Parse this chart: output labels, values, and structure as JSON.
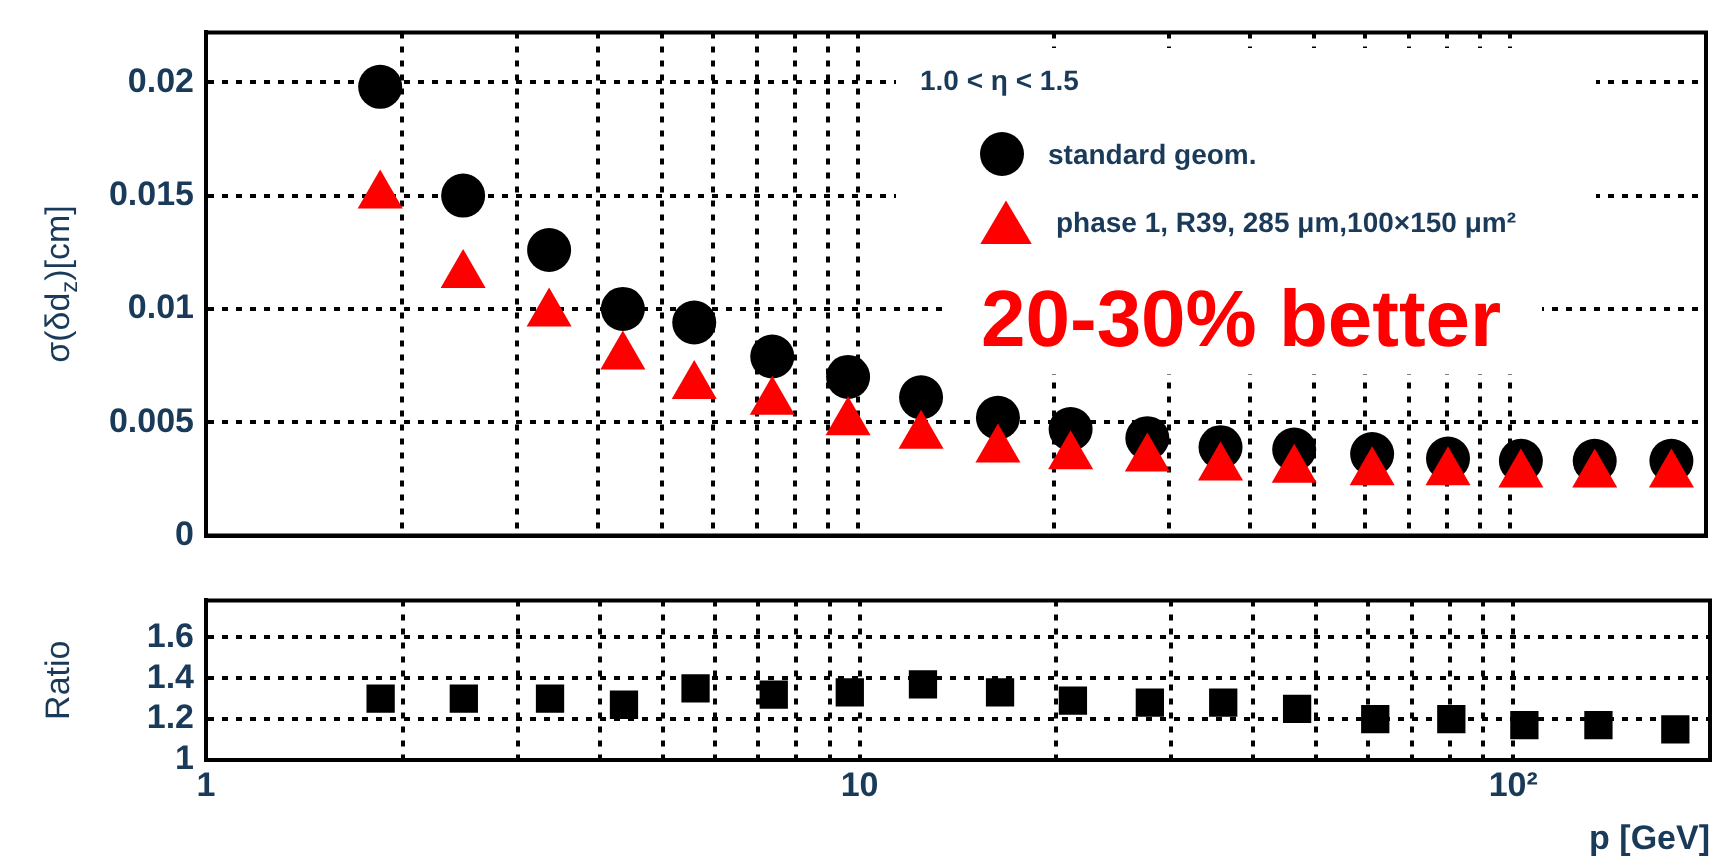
{
  "chart_data": [
    {
      "type": "scatter",
      "ylabel": "σ(δd$_{z}$)[cm]",
      "legend_title": "1.0 < η < 1.5",
      "legend": "top right",
      "log": "x",
      "grid": true,
      "tick_labels": "y",
      "annotations": [
        "20-30% better"
      ],
      "x": [
        1.85,
        2.48,
        3.36,
        4.36,
        5.61,
        7.39,
        9.66,
        12.5,
        16.4,
        21.2,
        27.8,
        36.0,
        46.7,
        61.5,
        80.4,
        104,
        135,
        177
      ],
      "xlim": [
        1,
        200
      ],
      "xticks": [
        {
          "value": 2,
          "label": null
        },
        {
          "value": 3,
          "label": null
        },
        {
          "value": 4,
          "label": null
        },
        {
          "value": 5,
          "label": null
        },
        {
          "value": 6,
          "label": null
        },
        {
          "value": 7,
          "label": null
        },
        {
          "value": 8,
          "label": null
        },
        {
          "value": 9,
          "label": null
        },
        {
          "value": 10,
          "label": null
        },
        {
          "value": 20,
          "label": null
        },
        {
          "value": 30,
          "label": null
        },
        {
          "value": 40,
          "label": null
        },
        {
          "value": 50,
          "label": null
        },
        {
          "value": 60,
          "label": null
        },
        {
          "value": 70,
          "label": null
        },
        {
          "value": 80,
          "label": null
        },
        {
          "value": 90,
          "label": null
        },
        {
          "value": 100,
          "label": null
        }
      ],
      "ylim": [
        0,
        0.0222
      ],
      "yticks": [
        0,
        0.005,
        0.01,
        0.015,
        0.02
      ],
      "series": [
        {
          "name": "standard geom.",
          "color": "#000000",
          "marker": "circle",
          "values": [
            0.0198,
            0.015,
            0.0126,
            0.01,
            0.0094,
            0.0079,
            0.007,
            0.0061,
            0.0052,
            0.0047,
            0.0043,
            0.0039,
            0.0038,
            0.0036,
            0.0034,
            0.0033,
            0.0033,
            0.0033
          ]
        },
        {
          "name": "phase 1, R39, 285 μm,100×150 μm²",
          "color": "#ff0000",
          "marker": "triangle",
          "values": [
            0.015,
            0.0115,
            0.0098,
            0.0079,
            0.0066,
            0.0059,
            0.005,
            0.0044,
            0.0038,
            0.0035,
            0.0034,
            0.003,
            0.0029,
            0.0028,
            0.0028,
            0.0027,
            0.0027,
            0.0027
          ]
        }
      ]
    },
    {
      "type": "scatter",
      "ylabel": "Ratio",
      "xlabel": "p [GeV]",
      "log": "x",
      "grid": true,
      "x": [
        1.85,
        2.48,
        3.36,
        4.36,
        5.61,
        7.39,
        9.66,
        12.5,
        16.4,
        21.2,
        27.8,
        36.0,
        46.7,
        61.5,
        80.4,
        104,
        135,
        177
      ],
      "xlim": [
        1,
        200
      ],
      "xticks": [
        1,
        {
          "value": 2,
          "label": null
        },
        {
          "value": 3,
          "label": null
        },
        {
          "value": 4,
          "label": null
        },
        {
          "value": 5,
          "label": null
        },
        {
          "value": 6,
          "label": null
        },
        {
          "value": 7,
          "label": null
        },
        {
          "value": 8,
          "label": null
        },
        {
          "value": 9,
          "label": null
        },
        10,
        {
          "value": 20,
          "label": null
        },
        {
          "value": 30,
          "label": null
        },
        {
          "value": 40,
          "label": null
        },
        {
          "value": 50,
          "label": null
        },
        {
          "value": 60,
          "label": null
        },
        {
          "value": 70,
          "label": null
        },
        {
          "value": 80,
          "label": null
        },
        {
          "value": 90,
          "label": null
        },
        {
          "value": 100,
          "label": "10²"
        }
      ],
      "ylim": [
        1,
        1.78
      ],
      "yticks": [
        1,
        1.2,
        1.4,
        1.6
      ],
      "series": [
        {
          "color": "#000000",
          "marker": "square",
          "values": [
            1.3,
            1.3,
            1.3,
            1.27,
            1.35,
            1.32,
            1.33,
            1.37,
            1.33,
            1.29,
            1.28,
            1.28,
            1.25,
            1.2,
            1.2,
            1.17,
            1.17,
            1.15
          ]
        }
      ]
    }
  ]
}
